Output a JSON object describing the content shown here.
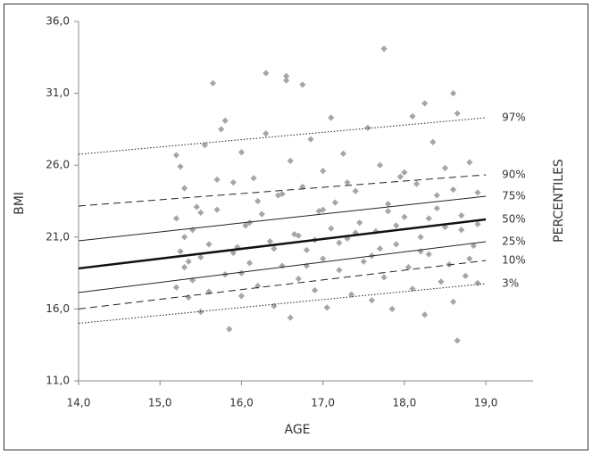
{
  "chart_data": {
    "type": "scatter",
    "x_label": "AGE",
    "y_label": "BMI",
    "right_label": "PERCENTILES",
    "xlim": [
      14,
      19.58
    ],
    "ylim": [
      11,
      36
    ],
    "xticks": [
      {
        "value": 14,
        "label": "14,0"
      },
      {
        "value": 15,
        "label": "15,0"
      },
      {
        "value": 16,
        "label": "16,0"
      },
      {
        "value": 17,
        "label": "17,0"
      },
      {
        "value": 18,
        "label": "18,0"
      },
      {
        "value": 19,
        "label": "19,0"
      }
    ],
    "yticks": [
      {
        "value": 11,
        "label": "11,0"
      },
      {
        "value": 16,
        "label": "16,0"
      },
      {
        "value": 21,
        "label": "21,0"
      },
      {
        "value": 26,
        "label": "26,0"
      },
      {
        "value": 31,
        "label": "31,0"
      },
      {
        "value": 36,
        "label": "36,0"
      }
    ],
    "series": [
      {
        "type": "scatter",
        "color": "#a6a6a6",
        "x": [
          15.2,
          15.25,
          15.3,
          15.2,
          15.25,
          15.3,
          15.2,
          15.35,
          15.4,
          15.45,
          15.5,
          15.5,
          15.55,
          15.6,
          15.65,
          15.7,
          15.75,
          15.8,
          15.8,
          15.85,
          15.9,
          15.95,
          16.0,
          16.0,
          16.05,
          16.1,
          16.15,
          16.2,
          16.25,
          16.3,
          16.3,
          16.35,
          16.4,
          16.45,
          16.5,
          16.55,
          16.55,
          16.6,
          16.6,
          16.65,
          16.7,
          16.75,
          16.75,
          16.8,
          16.85,
          16.9,
          16.95,
          17.0,
          17.0,
          17.05,
          17.1,
          17.1,
          17.15,
          17.2,
          17.25,
          17.3,
          17.35,
          17.4,
          17.45,
          17.5,
          17.55,
          17.6,
          17.65,
          17.7,
          17.75,
          17.75,
          17.8,
          17.85,
          17.9,
          17.95,
          18.0,
          18.05,
          18.1,
          18.1,
          18.15,
          18.2,
          18.25,
          18.25,
          18.3,
          18.35,
          18.4,
          18.45,
          18.5,
          18.5,
          18.55,
          18.6,
          18.6,
          18.65,
          18.65,
          18.7,
          18.75,
          18.8,
          18.85,
          18.9,
          18.9,
          15.3,
          15.6,
          15.9,
          16.1,
          16.4,
          16.7,
          17.2,
          17.4,
          17.9,
          18.3,
          18.7,
          15.4,
          16.0,
          16.8,
          17.6,
          18.2,
          18.8,
          15.7,
          16.5,
          17.3,
          18.0,
          18.6,
          15.5,
          16.2,
          17.0,
          17.8,
          18.4,
          15.35,
          16.9,
          17.7,
          18.9
        ],
        "values": [
          26.7,
          25.9,
          24.4,
          22.3,
          20.0,
          18.9,
          17.5,
          16.8,
          21.5,
          23.1,
          19.6,
          15.8,
          27.4,
          17.2,
          31.7,
          22.9,
          28.5,
          29.1,
          18.4,
          14.6,
          24.8,
          20.3,
          26.9,
          16.9,
          21.8,
          19.2,
          25.1,
          17.6,
          22.6,
          32.4,
          28.2,
          20.7,
          16.2,
          23.9,
          19.0,
          32.2,
          31.9,
          26.3,
          15.4,
          21.2,
          18.1,
          31.6,
          24.5,
          20.1,
          27.8,
          17.3,
          22.8,
          19.5,
          25.6,
          16.1,
          29.3,
          21.6,
          23.4,
          18.7,
          26.8,
          20.9,
          17.0,
          24.2,
          22.0,
          19.3,
          28.6,
          16.6,
          21.4,
          26.0,
          34.1,
          18.2,
          23.3,
          16.0,
          20.5,
          25.2,
          22.4,
          18.9,
          29.4,
          17.4,
          24.7,
          21.0,
          30.3,
          15.6,
          19.8,
          27.6,
          23.0,
          17.9,
          21.7,
          25.8,
          19.1,
          31.0,
          16.5,
          13.8,
          29.6,
          22.5,
          18.3,
          26.2,
          20.4,
          24.1,
          17.8,
          21.0,
          20.5,
          19.9,
          22.0,
          20.2,
          21.1,
          20.6,
          21.3,
          21.8,
          22.3,
          21.5,
          18.0,
          18.5,
          19.0,
          19.7,
          20.0,
          19.5,
          25.0,
          24.0,
          24.8,
          25.5,
          24.3,
          22.7,
          23.5,
          22.9,
          22.8,
          23.9,
          19.3,
          20.8,
          20.2,
          21.9
        ]
      },
      {
        "type": "line",
        "name": "97%",
        "dash": "dotted",
        "width": 1,
        "color": "#222222",
        "x": [
          14,
          19
        ],
        "values": [
          26.76,
          29.3
        ]
      },
      {
        "type": "line",
        "name": "90%",
        "dash": "dashed",
        "width": 1,
        "color": "#222222",
        "x": [
          14,
          19
        ],
        "values": [
          23.16,
          25.33
        ]
      },
      {
        "type": "line",
        "name": "75%",
        "dash": "solid",
        "width": 1,
        "color": "#222222",
        "x": [
          14,
          19
        ],
        "values": [
          20.74,
          23.84
        ]
      },
      {
        "type": "line",
        "name": "50%",
        "dash": "solid",
        "width": 2.5,
        "color": "#111111",
        "x": [
          14,
          19
        ],
        "values": [
          18.82,
          22.23
        ]
      },
      {
        "type": "line",
        "name": "25%",
        "dash": "solid",
        "width": 1,
        "color": "#222222",
        "x": [
          14,
          19
        ],
        "values": [
          17.14,
          20.68
        ]
      },
      {
        "type": "line",
        "name": "10%",
        "dash": "dashed",
        "width": 1,
        "color": "#222222",
        "x": [
          14,
          19
        ],
        "values": [
          16.0,
          19.37
        ]
      },
      {
        "type": "line",
        "name": "3%",
        "dash": "dotted",
        "width": 1,
        "color": "#222222",
        "x": [
          14,
          19
        ],
        "values": [
          15.0,
          17.76
        ]
      }
    ]
  }
}
